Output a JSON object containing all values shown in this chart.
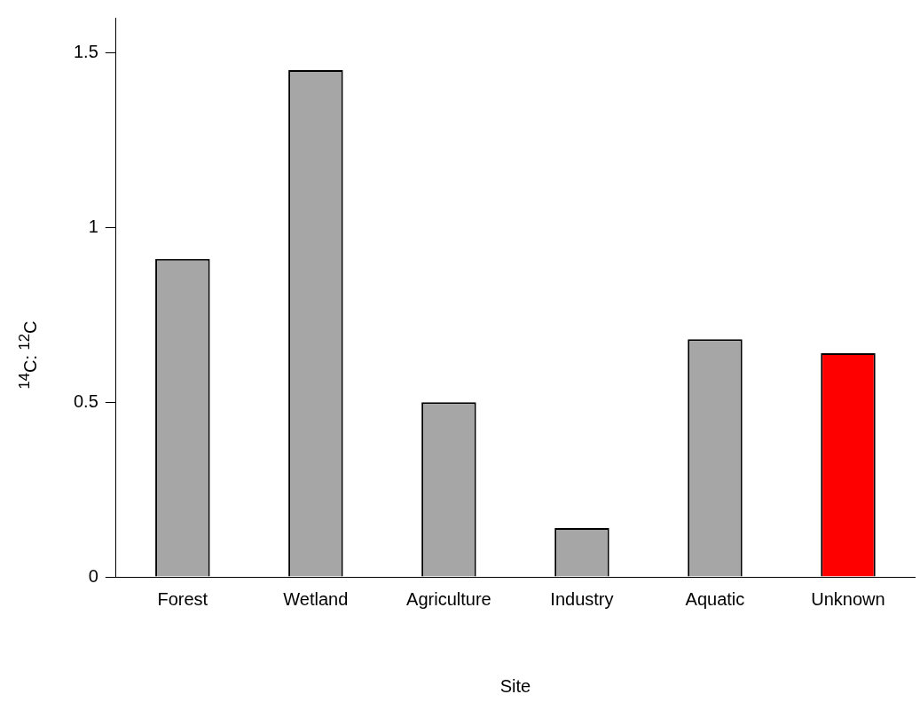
{
  "chart_data": {
    "type": "bar",
    "xlabel": "Site",
    "ylabel": "$^{14}$C: $^{12}$C",
    "categories": [
      "Forest",
      "Wetland",
      "Agriculture",
      "Industry",
      "Aquatic",
      "Unknown"
    ],
    "values": [
      0.91,
      1.45,
      0.5,
      0.14,
      0.68,
      0.64
    ],
    "colors": [
      "#a6a6a6",
      "#a6a6a6",
      "#a6a6a6",
      "#a6a6a6",
      "#a6a6a6",
      "#ff0000"
    ],
    "ylim": [
      0,
      1.6
    ],
    "yticks": [
      0,
      0.5,
      1,
      1.5
    ],
    "grid": false,
    "legend": false
  }
}
